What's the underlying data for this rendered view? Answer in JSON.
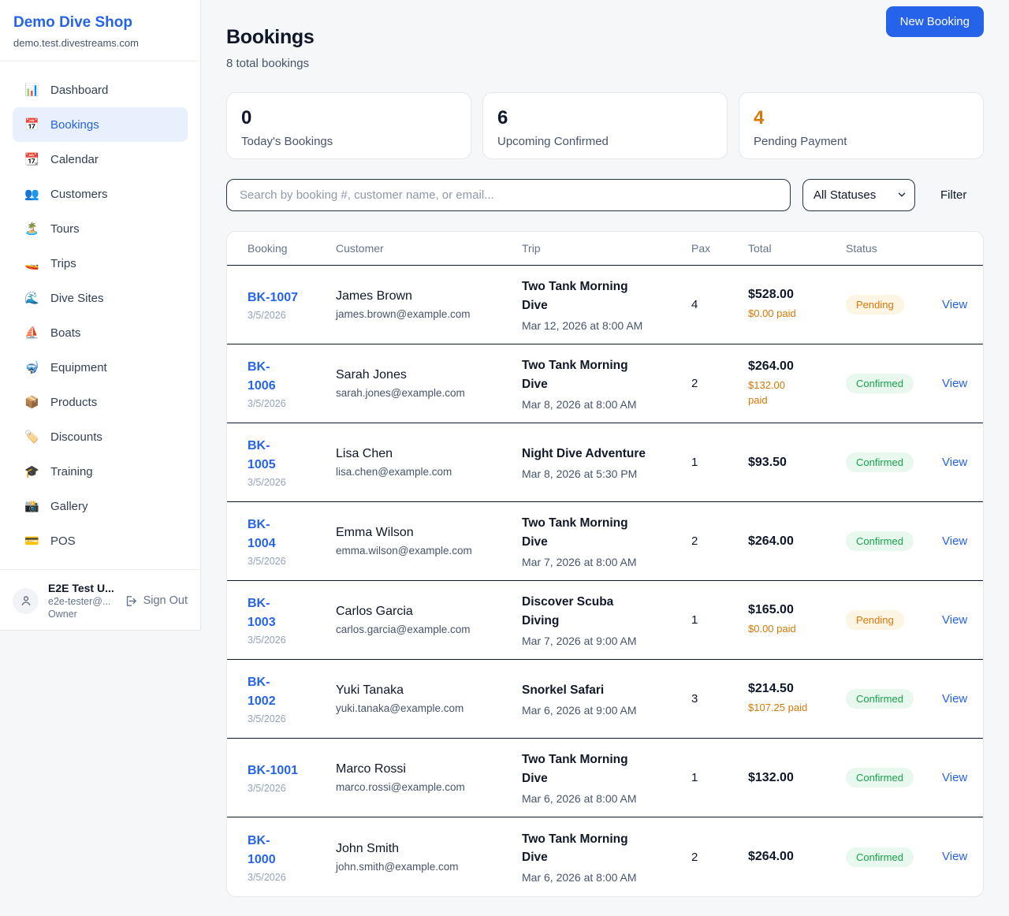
{
  "colors": {
    "brand_blue": "#2563eb",
    "pending_orange": "#d97706",
    "pending_bg": "#fdf5e4",
    "confirmed_green": "#16a34a",
    "confirmed_bg": "#e9f8ef",
    "dark_text": "#0f172a"
  },
  "sidebar": {
    "shop_name": "Demo Dive Shop",
    "domain": "demo.test.divestreams.com",
    "items": [
      {
        "label": "Dashboard",
        "icon": "📊",
        "active": false
      },
      {
        "label": "Bookings",
        "icon": "📅",
        "active": true
      },
      {
        "label": "Calendar",
        "icon": "📆",
        "active": false
      },
      {
        "label": "Customers",
        "icon": "👥",
        "active": false
      },
      {
        "label": "Tours",
        "icon": "🏝️",
        "active": false
      },
      {
        "label": "Trips",
        "icon": "🚤",
        "active": false
      },
      {
        "label": "Dive Sites",
        "icon": "🌊",
        "active": false
      },
      {
        "label": "Boats",
        "icon": "⛵",
        "active": false
      },
      {
        "label": "Equipment",
        "icon": "🤿",
        "active": false
      },
      {
        "label": "Products",
        "icon": "📦",
        "active": false
      },
      {
        "label": "Discounts",
        "icon": "🏷️",
        "active": false
      },
      {
        "label": "Training",
        "icon": "🎓",
        "active": false
      },
      {
        "label": "Gallery",
        "icon": "📸",
        "active": false
      },
      {
        "label": "POS",
        "icon": "💳",
        "active": false
      }
    ],
    "user": {
      "name": "E2E Test U...",
      "email": "e2e-tester@...",
      "role": "Owner",
      "sign_out_label": "Sign Out"
    }
  },
  "header": {
    "title": "Bookings",
    "subtitle": "8 total bookings",
    "new_booking_label": "New Booking"
  },
  "stats": [
    {
      "value": "0",
      "label": "Today's Bookings",
      "color": "#0f172a"
    },
    {
      "value": "6",
      "label": "Upcoming Confirmed",
      "color": "#0f172a"
    },
    {
      "value": "4",
      "label": "Pending Payment",
      "color": "#d97706"
    }
  ],
  "filters": {
    "search_placeholder": "Search by booking #, customer name, or email...",
    "status_selected": "All Statuses",
    "filter_label": "Filter"
  },
  "table": {
    "columns": [
      "Booking",
      "Customer",
      "Trip",
      "Pax",
      "Total",
      "Status"
    ],
    "rows": [
      {
        "id": "BK-1007",
        "date": "3/5/2026",
        "customer": "James Brown",
        "email": "james.brown@example.com",
        "trip": "Two Tank Morning\nDive",
        "trip_time": "Mar 12, 2026 at 8:00 AM",
        "pax": "4",
        "total": "$528.00",
        "paid": "$0.00 paid",
        "status": "Pending",
        "action": "View"
      },
      {
        "id": "BK-\n1006",
        "date": "3/5/2026",
        "customer": "Sarah Jones",
        "email": "sarah.jones@example.com",
        "trip": "Two Tank Morning\nDive",
        "trip_time": "Mar 8, 2026 at 8:00 AM",
        "pax": "2",
        "total": "$264.00",
        "paid": "$132.00\npaid",
        "status": "Confirmed",
        "action": "View"
      },
      {
        "id": "BK-\n1005",
        "date": "3/5/2026",
        "customer": "Lisa Chen",
        "email": "lisa.chen@example.com",
        "trip": "Night Dive Adventure",
        "trip_time": "Mar 8, 2026 at 5:30 PM",
        "pax": "1",
        "total": "$93.50",
        "paid": "",
        "status": "Confirmed",
        "action": "View"
      },
      {
        "id": "BK-\n1004",
        "date": "3/5/2026",
        "customer": "Emma Wilson",
        "email": "emma.wilson@example.com",
        "trip": "Two Tank Morning\nDive",
        "trip_time": "Mar 7, 2026 at 8:00 AM",
        "pax": "2",
        "total": "$264.00",
        "paid": "",
        "status": "Confirmed",
        "action": "View"
      },
      {
        "id": "BK-\n1003",
        "date": "3/5/2026",
        "customer": "Carlos Garcia",
        "email": "carlos.garcia@example.com",
        "trip": "Discover Scuba\nDiving",
        "trip_time": "Mar 7, 2026 at 9:00 AM",
        "pax": "1",
        "total": "$165.00",
        "paid": "$0.00 paid",
        "status": "Pending",
        "action": "View"
      },
      {
        "id": "BK-\n1002",
        "date": "3/5/2026",
        "customer": "Yuki Tanaka",
        "email": "yuki.tanaka@example.com",
        "trip": "Snorkel Safari",
        "trip_time": "Mar 6, 2026 at 9:00 AM",
        "pax": "3",
        "total": "$214.50",
        "paid": "$107.25 paid",
        "status": "Confirmed",
        "action": "View"
      },
      {
        "id": "BK-1001",
        "date": "3/5/2026",
        "customer": "Marco Rossi",
        "email": "marco.rossi@example.com",
        "trip": "Two Tank Morning\nDive",
        "trip_time": "Mar 6, 2026 at 8:00 AM",
        "pax": "1",
        "total": "$132.00",
        "paid": "",
        "status": "Confirmed",
        "action": "View"
      },
      {
        "id": "BK-\n1000",
        "date": "3/5/2026",
        "customer": "John Smith",
        "email": "john.smith@example.com",
        "trip": "Two Tank Morning\nDive",
        "trip_time": "Mar 6, 2026 at 8:00 AM",
        "pax": "2",
        "total": "$264.00",
        "paid": "",
        "status": "Confirmed",
        "action": "View"
      }
    ]
  }
}
